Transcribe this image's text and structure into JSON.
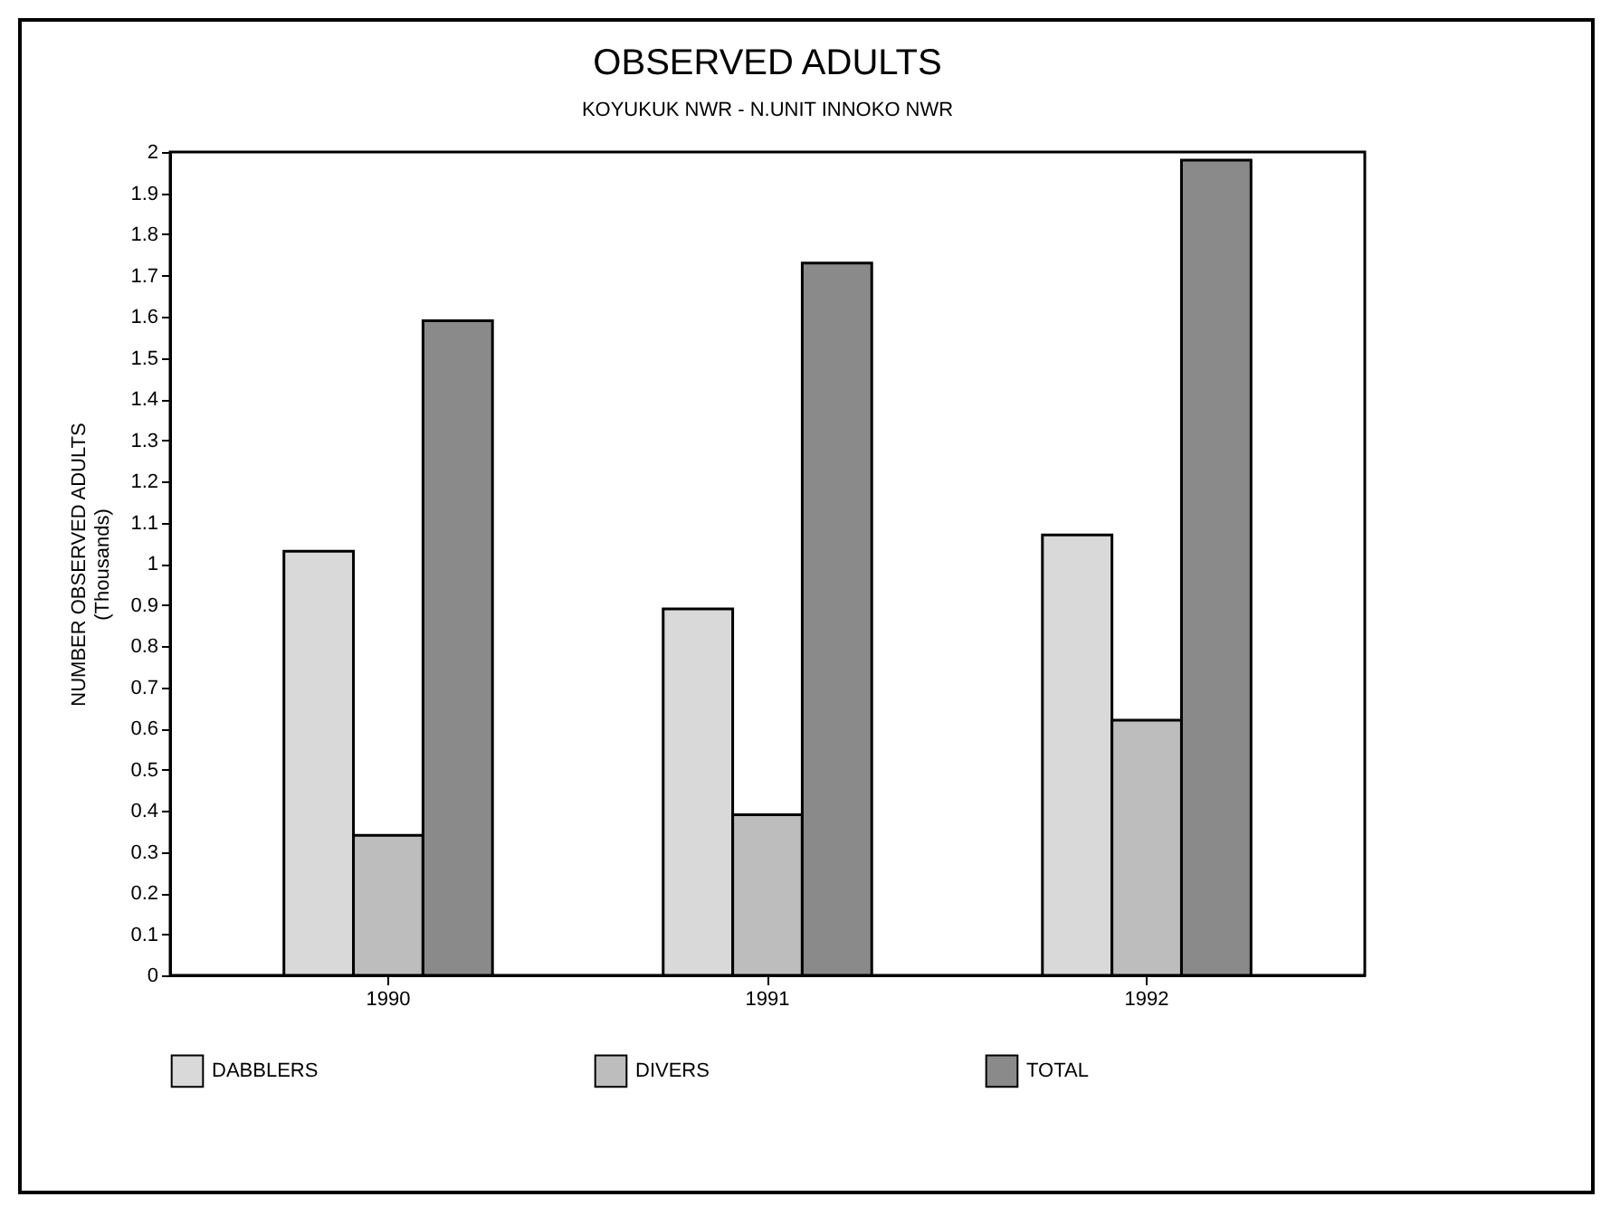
{
  "chart_data": {
    "type": "bar",
    "title": "OBSERVED ADULTS",
    "subtitle": "KOYUKUK NWR - N.UNIT INNOKO NWR",
    "ylabel": "NUMBER OBSERVED ADULTS\n(Thousands)",
    "categories": [
      "1990",
      "1991",
      "1992"
    ],
    "series": [
      {
        "name": "DABBLERS",
        "color": "#d9d9d9",
        "values": [
          1.03,
          0.89,
          1.07
        ]
      },
      {
        "name": "DIVERS",
        "color": "#bdbdbd",
        "values": [
          0.34,
          0.39,
          0.62
        ]
      },
      {
        "name": "TOTAL",
        "color": "#8a8a8a",
        "values": [
          1.59,
          1.73,
          1.98
        ]
      }
    ],
    "ylim": [
      0,
      2
    ],
    "yticks": [
      0,
      0.1,
      0.2,
      0.3,
      0.4,
      0.5,
      0.6,
      0.7,
      0.8,
      0.9,
      1,
      1.1,
      1.2,
      1.3,
      1.4,
      1.5,
      1.6,
      1.7,
      1.8,
      1.9,
      2
    ],
    "grid": false,
    "legend": "bottom"
  }
}
